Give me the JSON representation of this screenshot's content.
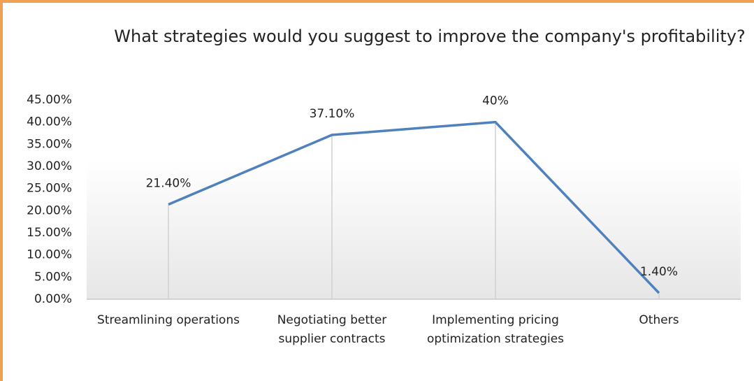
{
  "chart_data": {
    "type": "line",
    "title": "What strategies would you suggest to improve the company's profitability?",
    "categories": [
      "Streamlining operations",
      "Negotiating better supplier contracts",
      "Implementing pricing optimization strategies",
      "Others"
    ],
    "values": [
      21.4,
      37.1,
      40,
      1.4
    ],
    "value_labels": [
      "21.40%",
      "37.10%",
      "40%",
      "1.40%"
    ],
    "color": "#4f81bd",
    "ylim": [
      0,
      45
    ],
    "yticks": [
      {
        "value": 0,
        "label": "0.00%"
      },
      {
        "value": 5,
        "label": "5.00%"
      },
      {
        "value": 10,
        "label": "10.00%"
      },
      {
        "value": 15,
        "label": "15.00%"
      },
      {
        "value": 20,
        "label": "20.00%"
      },
      {
        "value": 25,
        "label": "25.00%"
      },
      {
        "value": 30,
        "label": "30.00%"
      },
      {
        "value": 35,
        "label": "35.00%"
      },
      {
        "value": 40,
        "label": "40.00%"
      },
      {
        "value": 45,
        "label": "45.00%"
      }
    ]
  }
}
